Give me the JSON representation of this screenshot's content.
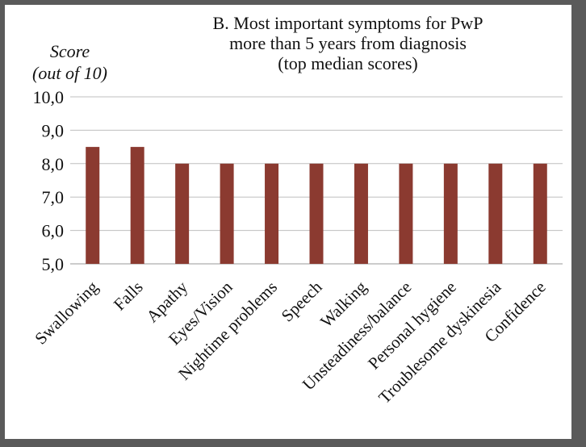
{
  "chart_data": {
    "type": "bar",
    "title_lines": [
      "B. Most important symptoms for PwP",
      "more than 5 years from diagnosis",
      "(top median scores)"
    ],
    "ylabel_lines": [
      "Score",
      "(out of 10)"
    ],
    "xlabel": "",
    "categories": [
      "Swallowing",
      "Falls",
      "Apathy",
      "Eyes/Vision",
      "Nightime problems",
      "Speech",
      "Walking",
      "Unsteadiness/balance",
      "Personal hygiene",
      "Troublesome dyskinesia",
      "Confidence"
    ],
    "values": [
      8.5,
      8.5,
      8.0,
      8.0,
      8.0,
      8.0,
      8.0,
      8.0,
      8.0,
      8.0,
      8.0
    ],
    "ylim": [
      5.0,
      10.0
    ],
    "yticks": [
      "5,0",
      "6,0",
      "7,0",
      "8,0",
      "9,0",
      "10,0"
    ],
    "grid": true,
    "legend": "none",
    "bar_color": "#8b3a30",
    "grid_color": "#bfbfbf"
  }
}
